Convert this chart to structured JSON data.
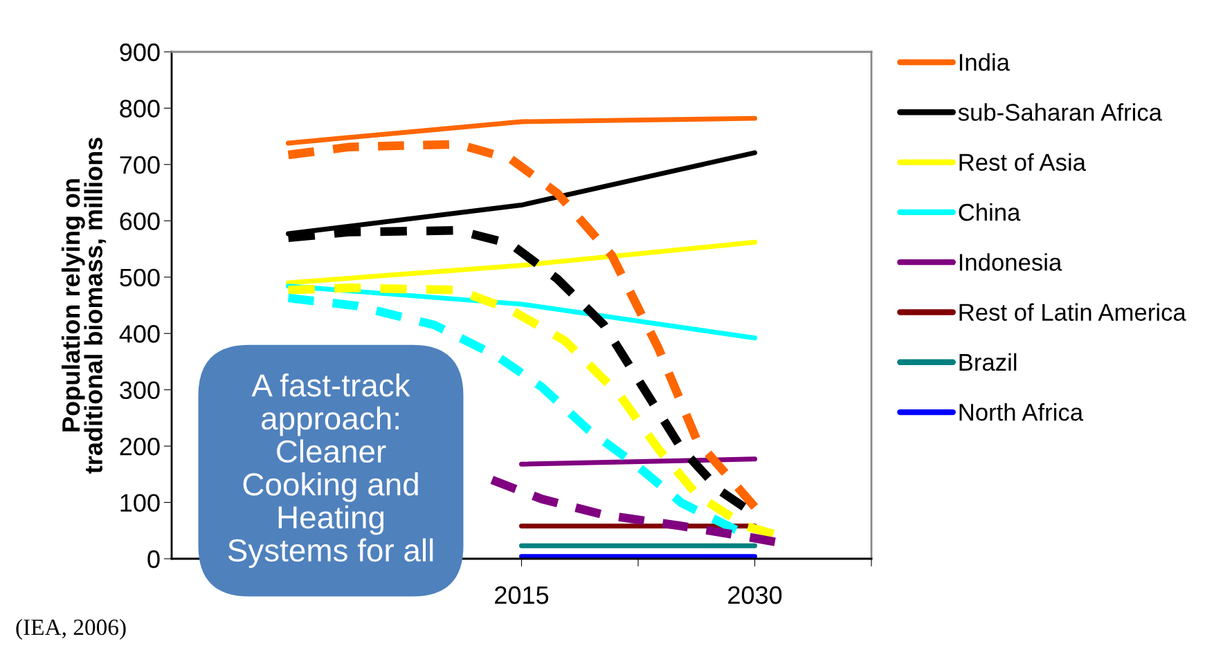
{
  "chart_data": {
    "type": "line",
    "ylabel": "Population relying on\ntraditional biomass, millions",
    "x": [
      2000,
      2015,
      2030
    ],
    "xlim": [
      1992.5,
      2037.5
    ],
    "xticks": [
      {
        "value": 2007.5,
        "label": null
      },
      2015,
      {
        "value": 2022.5,
        "label": null
      },
      2030,
      {
        "value": 2037.5,
        "label": null
      }
    ],
    "ylim": [
      0,
      900
    ],
    "yticks": [
      0,
      100,
      200,
      300,
      400,
      500,
      600,
      700,
      800,
      900
    ],
    "grid": false,
    "legend": "right",
    "marker": "none",
    "series": [
      {
        "name": "India",
        "color": "#ff6600",
        "values": [
          738,
          776,
          782
        ]
      },
      {
        "name": "sub-Saharan Africa",
        "color": "#000000",
        "values": [
          577,
          628,
          721
        ]
      },
      {
        "name": "Rest of Asia",
        "color": "#ffff00",
        "values": [
          490,
          521,
          562
        ]
      },
      {
        "name": "China",
        "color": "#00ffff",
        "values": [
          484,
          452,
          392
        ]
      },
      {
        "name": "Indonesia",
        "color": "#800080",
        "values": [
          null,
          168,
          177
        ]
      },
      {
        "name": "Rest of Latin America",
        "color": "#800000",
        "values": [
          null,
          58,
          58
        ]
      },
      {
        "name": "Brazil",
        "color": "#008080",
        "values": [
          null,
          23,
          23
        ]
      },
      {
        "name": "North Africa",
        "color": "#0000ff",
        "values": [
          null,
          4,
          4
        ]
      },
      {
        "color": "#ff6600",
        "line_style": "dashed",
        "x": [
          2000,
          2003.9,
          2010.9,
          2014.3,
          2017.3,
          2020.8,
          2023.8,
          2026.3,
          2030
        ],
        "values": [
          717,
          731,
          736,
          710,
          649,
          539,
          374,
          209,
          92
        ]
      },
      {
        "color": "#000000",
        "line_style": "dashed",
        "x": [
          2000,
          2003.9,
          2010.9,
          2014.3,
          2017.3,
          2020.3,
          2022.8,
          2025.3,
          2027.8,
          2029.3
        ],
        "values": [
          570,
          580,
          583,
          559,
          497,
          415,
          305,
          195,
          120,
          92
        ]
      },
      {
        "color": "#ffff00",
        "line_style": "dashed",
        "x": [
          2000,
          2003.9,
          2010.9,
          2014.3,
          2017.8,
          2021.3,
          2023.8,
          2026.3,
          2029.4,
          2031.2
        ],
        "values": [
          477,
          481,
          477,
          442,
          387,
          291,
          195,
          113,
          58,
          44
        ]
      },
      {
        "color": "#00ffff",
        "line_style": "dashed",
        "x": [
          2000,
          2004.4,
          2009.4,
          2013.4,
          2016.3,
          2019.3,
          2022.3,
          2025.3,
          2028.8
        ],
        "values": [
          463,
          449,
          415,
          360,
          305,
          229,
          168,
          99,
          51
        ]
      },
      {
        "color": "#800080",
        "line_style": "dashed",
        "x": [
          2013.1,
          2016.3,
          2020.3,
          2025.3,
          2029.3,
          2031.3
        ],
        "values": [
          140,
          106,
          78,
          58,
          40,
          30
        ]
      }
    ],
    "annotations": [
      "(IEA, 2006)",
      "A fast-track\napproach:\nCleaner\nCooking and\nHeating\nSystems for all"
    ]
  }
}
